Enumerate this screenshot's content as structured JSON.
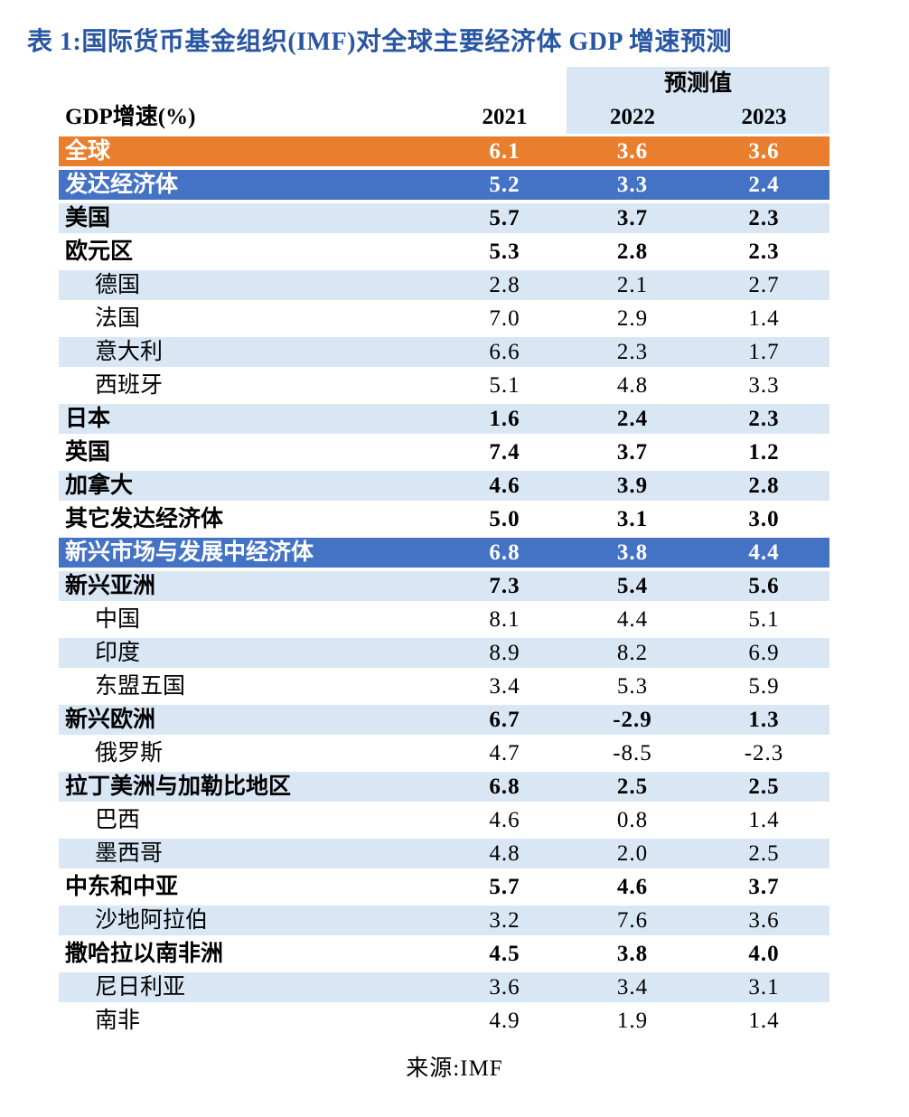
{
  "title": "表 1:国际货币基金组织(IMF)对全球主要经济体 GDP 增速预测",
  "source": "来源:IMF",
  "colors": {
    "title_blue": "#2956A3",
    "highlight_orange": "#E97E2F",
    "highlight_blue": "#4472C4",
    "stripe_lightblue": "#D9E7F5",
    "white_text": "#FFFFFF"
  },
  "table": {
    "forecast_label": "预测值",
    "col_header": "GDP增速(%)",
    "years": [
      "2021",
      "2022",
      "2023"
    ],
    "rows": [
      {
        "label": "全球",
        "values": [
          "6.1",
          "3.6",
          "3.6"
        ],
        "bg": "orange",
        "bold": true,
        "indent": false
      },
      {
        "label": "发达经济体",
        "values": [
          "5.2",
          "3.3",
          "2.4"
        ],
        "bg": "blue",
        "bold": true,
        "indent": false
      },
      {
        "label": "美国",
        "values": [
          "5.7",
          "3.7",
          "2.3"
        ],
        "bg": "lightblue",
        "bold": true,
        "indent": false
      },
      {
        "label": "欧元区",
        "values": [
          "5.3",
          "2.8",
          "2.3"
        ],
        "bg": "white",
        "bold": true,
        "indent": false
      },
      {
        "label": "德国",
        "values": [
          "2.8",
          "2.1",
          "2.7"
        ],
        "bg": "lightblue",
        "bold": false,
        "indent": true
      },
      {
        "label": "法国",
        "values": [
          "7.0",
          "2.9",
          "1.4"
        ],
        "bg": "white",
        "bold": false,
        "indent": true
      },
      {
        "label": "意大利",
        "values": [
          "6.6",
          "2.3",
          "1.7"
        ],
        "bg": "lightblue",
        "bold": false,
        "indent": true
      },
      {
        "label": "西班牙",
        "values": [
          "5.1",
          "4.8",
          "3.3"
        ],
        "bg": "white",
        "bold": false,
        "indent": true
      },
      {
        "label": "日本",
        "values": [
          "1.6",
          "2.4",
          "2.3"
        ],
        "bg": "lightblue",
        "bold": true,
        "indent": false
      },
      {
        "label": "英国",
        "values": [
          "7.4",
          "3.7",
          "1.2"
        ],
        "bg": "white",
        "bold": true,
        "indent": false
      },
      {
        "label": "加拿大",
        "values": [
          "4.6",
          "3.9",
          "2.8"
        ],
        "bg": "lightblue",
        "bold": true,
        "indent": false
      },
      {
        "label": "其它发达经济体",
        "values": [
          "5.0",
          "3.1",
          "3.0"
        ],
        "bg": "white",
        "bold": true,
        "indent": false
      },
      {
        "label": "新兴市场与发展中经济体",
        "values": [
          "6.8",
          "3.8",
          "4.4"
        ],
        "bg": "blue",
        "bold": true,
        "indent": false
      },
      {
        "label": "新兴亚洲",
        "values": [
          "7.3",
          "5.4",
          "5.6"
        ],
        "bg": "lightblue",
        "bold": true,
        "indent": false
      },
      {
        "label": "中国",
        "values": [
          "8.1",
          "4.4",
          "5.1"
        ],
        "bg": "white",
        "bold": false,
        "indent": true
      },
      {
        "label": "印度",
        "values": [
          "8.9",
          "8.2",
          "6.9"
        ],
        "bg": "lightblue",
        "bold": false,
        "indent": true
      },
      {
        "label": "东盟五国",
        "values": [
          "3.4",
          "5.3",
          "5.9"
        ],
        "bg": "white",
        "bold": false,
        "indent": true
      },
      {
        "label": "新兴欧洲",
        "values": [
          "6.7",
          "-2.9",
          "1.3"
        ],
        "bg": "lightblue",
        "bold": true,
        "indent": false
      },
      {
        "label": "俄罗斯",
        "values": [
          "4.7",
          "-8.5",
          "-2.3"
        ],
        "bg": "white",
        "bold": false,
        "indent": true
      },
      {
        "label": "拉丁美洲与加勒比地区",
        "values": [
          "6.8",
          "2.5",
          "2.5"
        ],
        "bg": "lightblue",
        "bold": true,
        "indent": false
      },
      {
        "label": "巴西",
        "values": [
          "4.6",
          "0.8",
          "1.4"
        ],
        "bg": "white",
        "bold": false,
        "indent": true
      },
      {
        "label": "墨西哥",
        "values": [
          "4.8",
          "2.0",
          "2.5"
        ],
        "bg": "lightblue",
        "bold": false,
        "indent": true
      },
      {
        "label": "中东和中亚",
        "values": [
          "5.7",
          "4.6",
          "3.7"
        ],
        "bg": "white",
        "bold": true,
        "indent": false
      },
      {
        "label": "沙地阿拉伯",
        "values": [
          "3.2",
          "7.6",
          "3.6"
        ],
        "bg": "lightblue",
        "bold": false,
        "indent": true
      },
      {
        "label": "撒哈拉以南非洲",
        "values": [
          "4.5",
          "3.8",
          "4.0"
        ],
        "bg": "white",
        "bold": true,
        "indent": false
      },
      {
        "label": "尼日利亚",
        "values": [
          "3.6",
          "3.4",
          "3.1"
        ],
        "bg": "lightblue",
        "bold": false,
        "indent": true
      },
      {
        "label": "南非",
        "values": [
          "4.9",
          "1.9",
          "1.4"
        ],
        "bg": "white",
        "bold": false,
        "indent": true
      }
    ]
  }
}
